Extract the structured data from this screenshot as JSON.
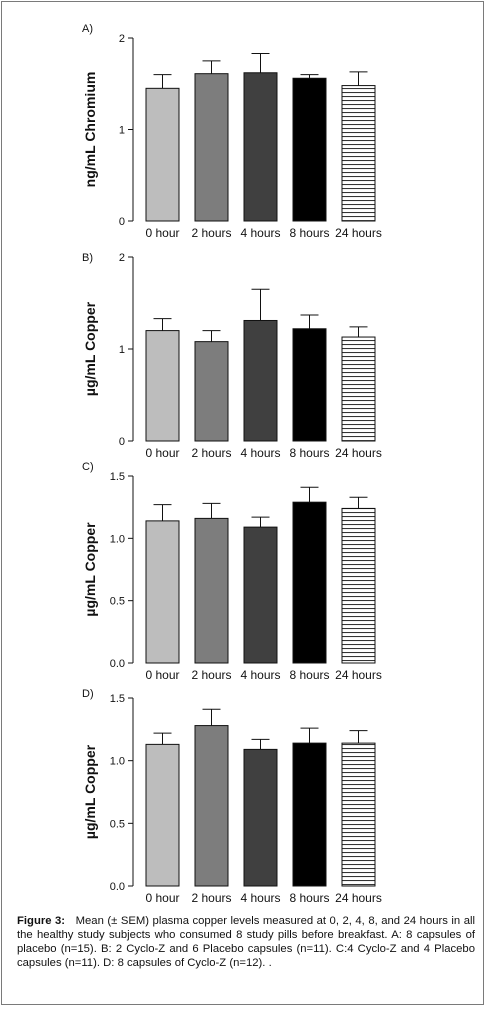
{
  "chart_data": [
    {
      "type": "bar",
      "panel_label": "A)",
      "ylabel": "ng/mL Chromium",
      "ylim": [
        0,
        2
      ],
      "yticks": [
        "0",
        "1",
        "2"
      ],
      "categories": [
        "0 hour",
        "2 hours",
        "4 hours",
        "8 hours",
        "24 hours"
      ],
      "values": [
        1.45,
        1.61,
        1.62,
        1.56,
        1.48
      ],
      "errors": [
        0.15,
        0.14,
        0.21,
        0.04,
        0.15
      ],
      "bar_colors": [
        "#bdbdbd",
        "#7d7d7d",
        "#404040",
        "#000000",
        "hatch"
      ]
    },
    {
      "type": "bar",
      "panel_label": "B)",
      "ylabel": "µg/mL Copper",
      "ylim": [
        0,
        2
      ],
      "yticks": [
        "0",
        "1",
        "2"
      ],
      "categories": [
        "0 hour",
        "2 hours",
        "4 hours",
        "8 hours",
        "24 hours"
      ],
      "values": [
        1.2,
        1.08,
        1.31,
        1.22,
        1.13
      ],
      "errors": [
        0.13,
        0.12,
        0.34,
        0.15,
        0.11
      ],
      "bar_colors": [
        "#bdbdbd",
        "#7d7d7d",
        "#404040",
        "#000000",
        "hatch"
      ]
    },
    {
      "type": "bar",
      "panel_label": "C)",
      "ylabel": "µg/mL Copper",
      "ylim": [
        0,
        1.5
      ],
      "yticks": [
        "0.0",
        "0.5",
        "1.0",
        "1.5"
      ],
      "categories": [
        "0 hour",
        "2 hours",
        "4 hours",
        "8 hours",
        "24 hours"
      ],
      "values": [
        1.14,
        1.16,
        1.09,
        1.29,
        1.24
      ],
      "errors": [
        0.13,
        0.12,
        0.08,
        0.12,
        0.09
      ],
      "bar_colors": [
        "#bdbdbd",
        "#7d7d7d",
        "#404040",
        "#000000",
        "hatch"
      ]
    },
    {
      "type": "bar",
      "panel_label": "D)",
      "ylabel": "µg/mL Copper",
      "ylim": [
        0,
        1.5
      ],
      "yticks": [
        "0.0",
        "0.5",
        "1.0",
        "1.5"
      ],
      "categories": [
        "0 hour",
        "2 hours",
        "4 hours",
        "8 hours",
        "24 hours"
      ],
      "values": [
        1.13,
        1.28,
        1.09,
        1.14,
        1.14
      ],
      "errors": [
        0.09,
        0.13,
        0.08,
        0.12,
        0.1
      ],
      "bar_colors": [
        "#bdbdbd",
        "#7d7d7d",
        "#404040",
        "#000000",
        "hatch"
      ]
    }
  ],
  "caption": {
    "label": "Figure 3:",
    "text": "Mean (± SEM) plasma copper levels measured at 0, 2, 4, 8, and 24 hours in all the healthy study subjects who consumed 8 study pills before breakfast.  A: 8 capsules of placebo (n=15). B: 2 Cyclo-Z and 6 Placebo capsules (n=11).  C:4 Cyclo-Z and 4 Placebo capsules (n=11).  D: 8 capsules of Cyclo-Z (n=12). ."
  }
}
